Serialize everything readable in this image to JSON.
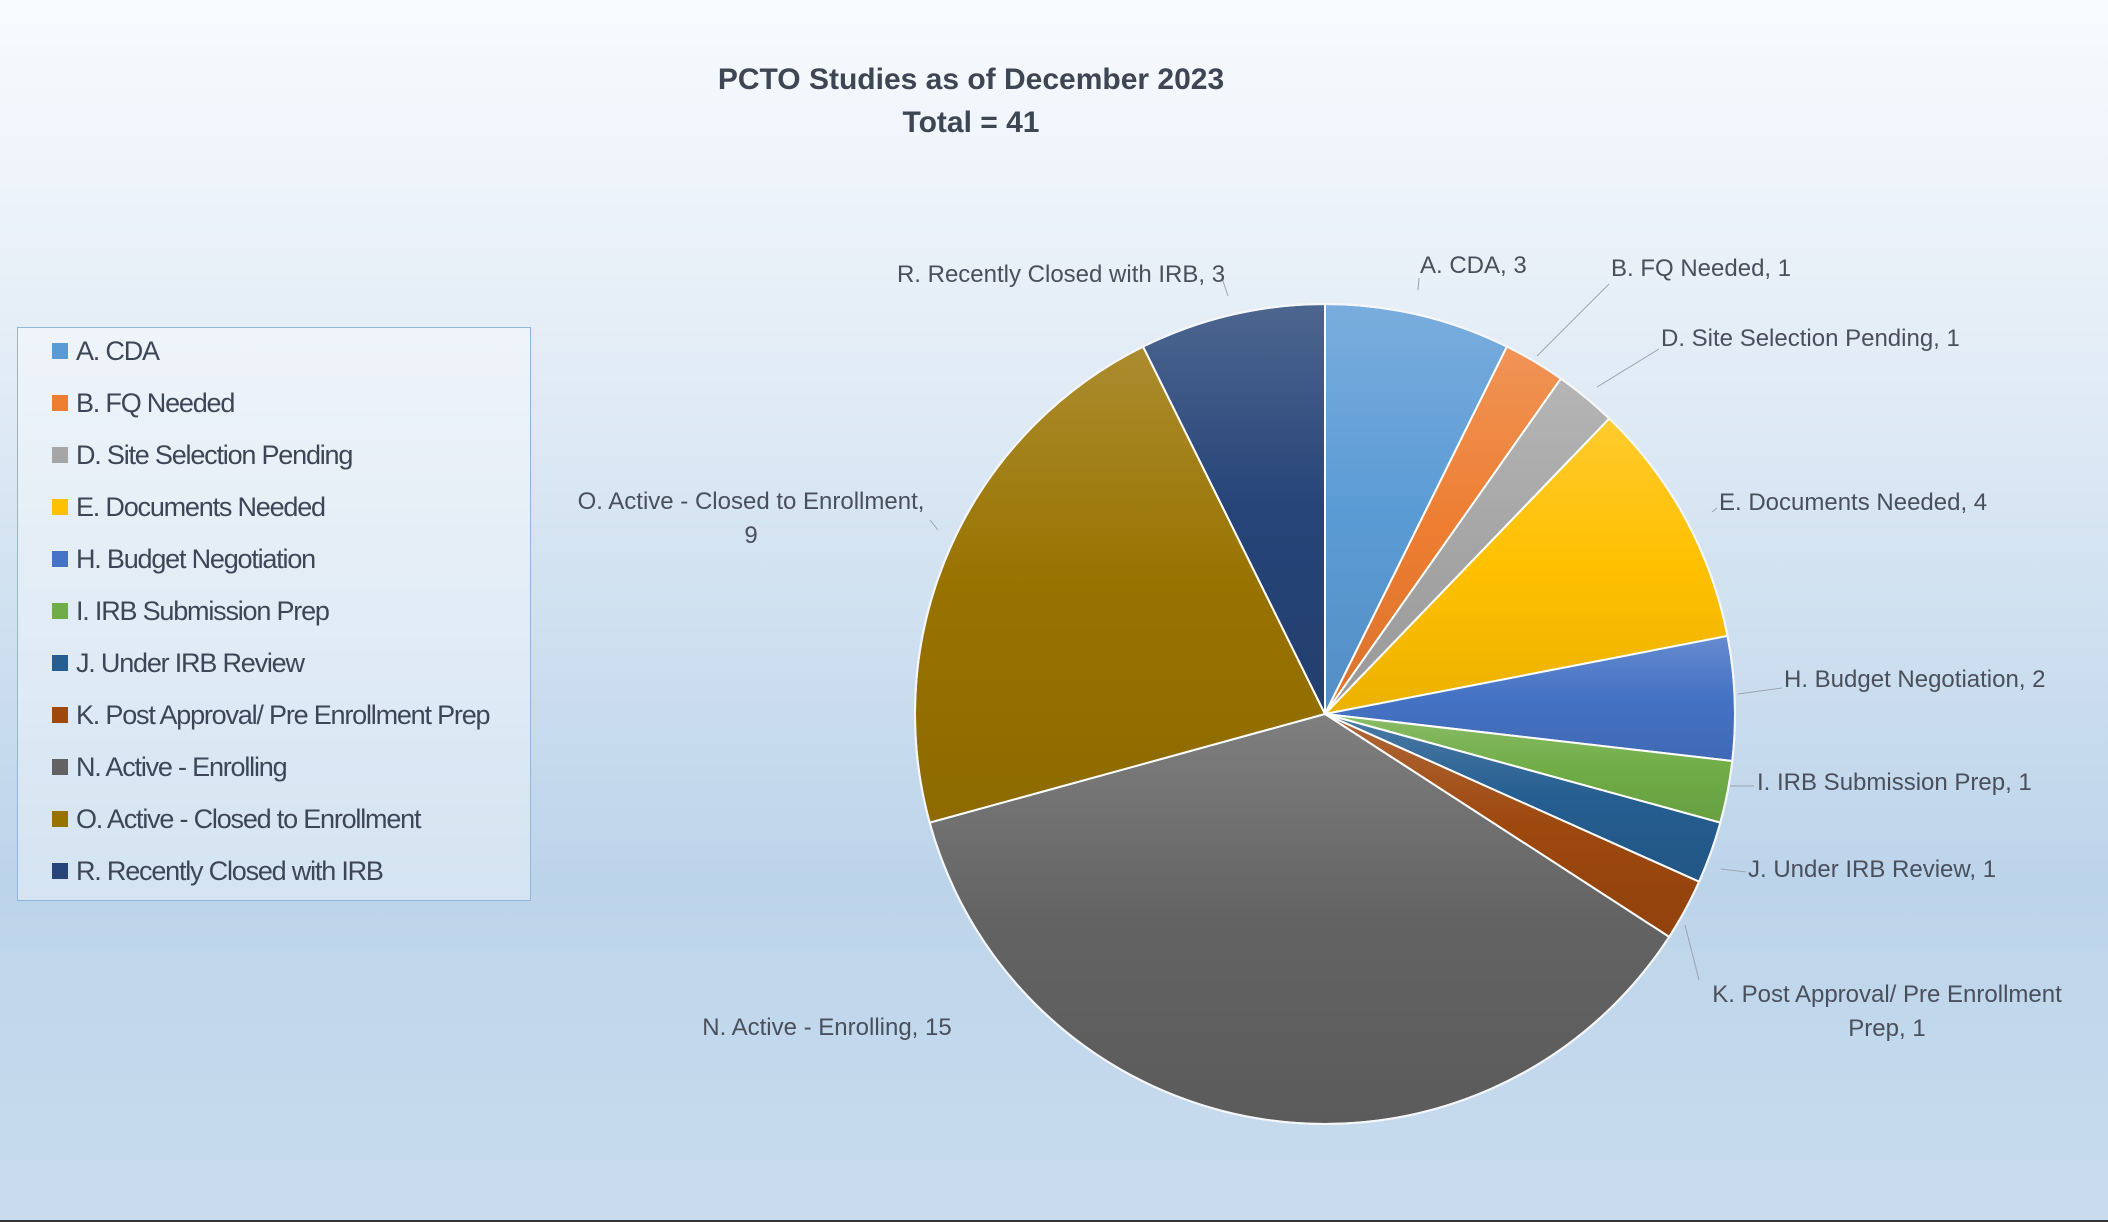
{
  "chart_data": {
    "type": "pie",
    "title": "PCTO Studies as of December 2023",
    "subtitle": "Total = 41",
    "legend_position": "left",
    "slices": [
      {
        "name": "A. CDA",
        "value": 3,
        "color": "#5b9bd5",
        "data_label": [
          "A. CDA, 3"
        ]
      },
      {
        "name": "B. FQ Needed",
        "value": 1,
        "color": "#ed7d31",
        "data_label": [
          "B. FQ Needed,  1"
        ]
      },
      {
        "name": "D. Site Selection Pending",
        "value": 1,
        "color": "#a5a5a5",
        "data_label": [
          "D. Site Selection Pending, 1"
        ]
      },
      {
        "name": "E. Documents Needed",
        "value": 4,
        "color": "#ffc000",
        "data_label": [
          "E. Documents Needed, 4"
        ]
      },
      {
        "name": "H. Budget Negotiation",
        "value": 2,
        "color": "#4472c4",
        "data_label": [
          "H. Budget Negotiation,  2"
        ]
      },
      {
        "name": "I. IRB Submission Prep",
        "value": 1,
        "color": "#70ad47",
        "data_label": [
          "I. IRB Submission Prep,  1"
        ]
      },
      {
        "name": "J. Under IRB Review",
        "value": 1,
        "color": "#255e91",
        "data_label": [
          "J. Under IRB Review, 1"
        ]
      },
      {
        "name": "K. Post Approval/ Pre Enrollment Prep",
        "value": 1,
        "color": "#9e480e",
        "data_label": [
          "K. Post Approval/ Pre Enrollment",
          "Prep,  1"
        ]
      },
      {
        "name": "N. Active - Enrolling",
        "value": 15,
        "color": "#636363",
        "data_label": [
          "N. Active - Enrolling,  15"
        ]
      },
      {
        "name": "O. Active - Closed to Enrollment",
        "value": 9,
        "color": "#997300",
        "data_label": [
          "O. Active - Closed to Enrollment,",
          "9"
        ]
      },
      {
        "name": "R. Recently Closed with IRB",
        "value": 3,
        "color": "#264478",
        "data_label": [
          "R. Recently Closed with IRB, 3"
        ]
      }
    ]
  }
}
